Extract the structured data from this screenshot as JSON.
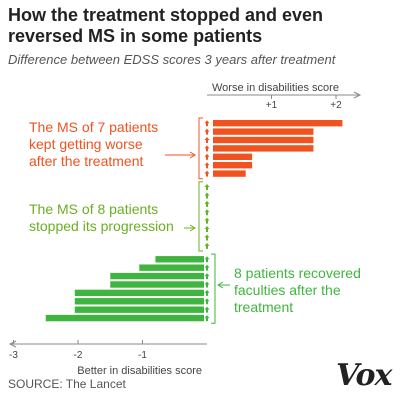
{
  "title": "How the treatment stopped and even reversed MS in some patients",
  "subtitle": "Difference between EDSS scores 3 years after treatment",
  "chart_data": {
    "type": "bar",
    "orientation": "horizontal",
    "xlim": [
      -3,
      2.2
    ],
    "grid": false,
    "xlabel_top": "Worse in disabilities score",
    "xlabel_bottom": "Better in disabilities score",
    "ticks_top": [
      {
        "value": 1,
        "label": "+1"
      },
      {
        "value": 2,
        "label": "+2"
      }
    ],
    "ticks_bottom": [
      {
        "value": -3,
        "label": "-3"
      },
      {
        "value": -2,
        "label": "-2"
      },
      {
        "value": -1,
        "label": "-1"
      }
    ],
    "colors": {
      "worse": "#f0531f",
      "stopped": "#6ab023",
      "better": "#3fb53f",
      "axis": "#8a8a8a"
    },
    "groups": [
      {
        "key": "worse",
        "label": "The MS of 7 patients kept getting worse after the treatment",
        "label_lines": [
          "The MS of 7 patients",
          "kept getting worse",
          "after the treatment"
        ],
        "values": [
          2.1,
          1.65,
          1.65,
          1.65,
          0.7,
          0.7,
          0.6
        ]
      },
      {
        "key": "stopped",
        "label": "The MS of 8 patients stopped its progression",
        "label_lines": [
          "The MS of 8 patients",
          "stopped its progression"
        ],
        "values": [
          0,
          0,
          0,
          0,
          0,
          0,
          0,
          0
        ]
      },
      {
        "key": "better",
        "label": "8 patients recovered faculties after the treatment",
        "label_lines": [
          "8 patients recovered",
          "faculties after the",
          "treatment"
        ],
        "values": [
          -0.8,
          -1.05,
          -1.5,
          -1.5,
          -2.05,
          -2.05,
          -2.05,
          -2.5
        ]
      }
    ]
  },
  "source": "SOURCE: The Lancet",
  "logo": "Vox"
}
